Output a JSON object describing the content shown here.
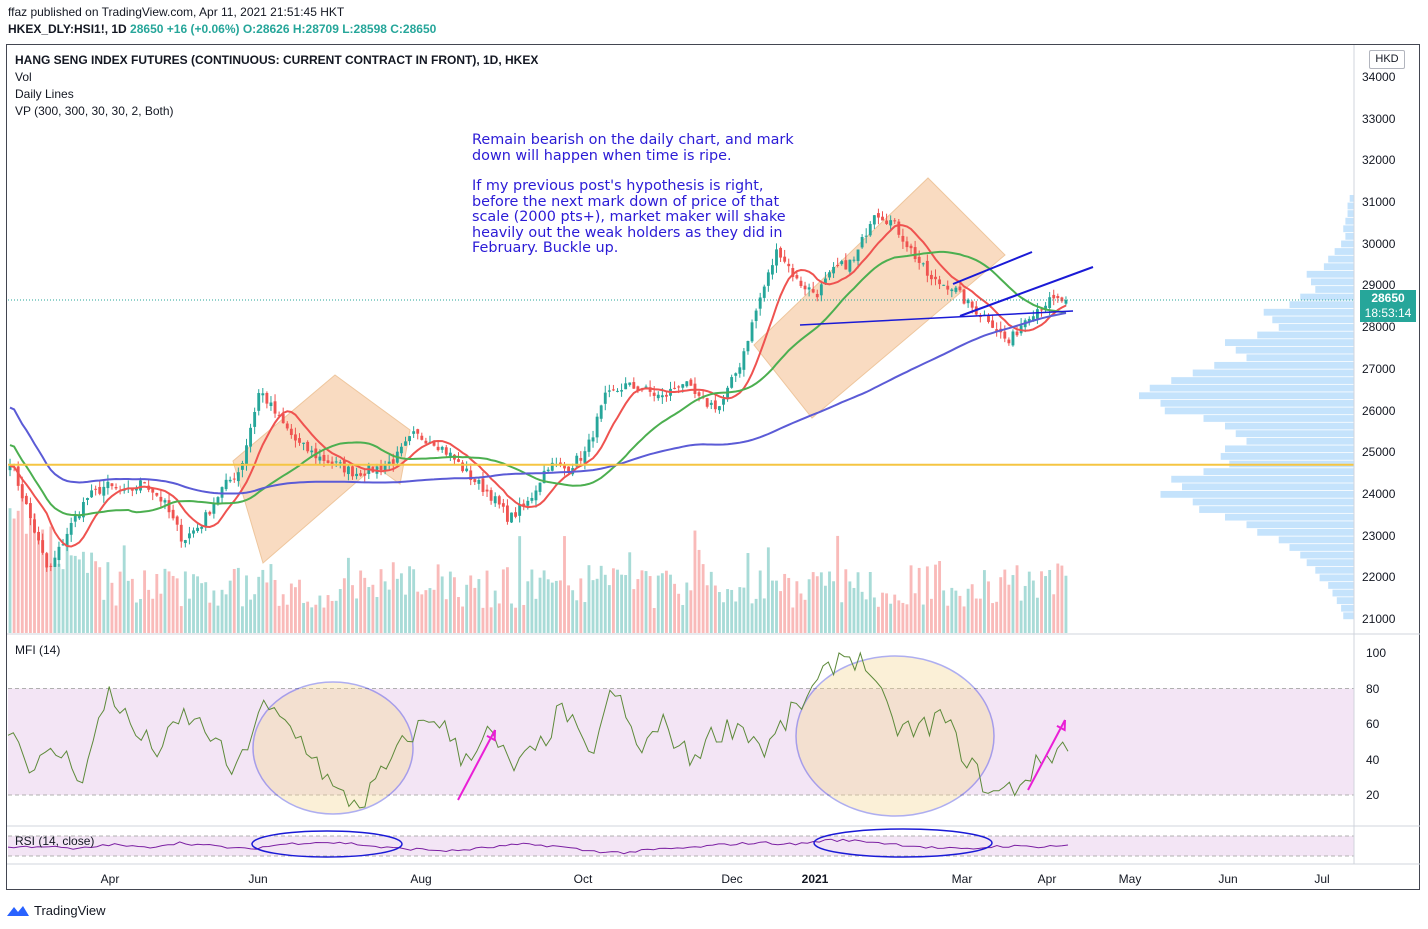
{
  "header": {
    "published": "ffaz published on TradingView.com, Apr 11, 2021 21:51:45 HKT",
    "symbol_line_prefix": "HKEX_DLY:HSI1!, 1D",
    "last": "28650",
    "change": "+16 (+0.06%)",
    "ohlc": "O:28626 H:28709 L:28598 C:28650"
  },
  "legend": {
    "title": "HANG SENG INDEX FUTURES (CONTINUOUS: CURRENT CONTRACT IN FRONT), 1D, HKEX",
    "items": [
      "Vol",
      "Daily Lines",
      "VP (300, 300, 30, 30, 2, Both)"
    ],
    "mfi": "MFI (14)",
    "rsi": "RSI (14, close)"
  },
  "annotation": {
    "para1": "Remain bearish on the daily chart, and mark\ndown will happen when time is ripe.",
    "para2": "If my previous post's hypothesis is right,\nbefore the next mark down of price of that\nscale (2000 pts+), market maker will shake\nheavily out the weak holders as they did in\nFebruary. Buckle up."
  },
  "currency": "HKD",
  "price_tag": {
    "price": "28650",
    "countdown": "18:53:14"
  },
  "footer": {
    "brand": "TradingView"
  },
  "colors": {
    "up": "#26a69a",
    "down": "#ef5350",
    "ma_fast": "#ef5350",
    "ma_mid": "#4caf50",
    "ma_slow": "#5b5bd6",
    "hline": "#f5c542",
    "box": "#f7c9a0",
    "vp": "#bbdefb",
    "mfi_band": "#f3e5f5",
    "mfi_line": "#5d8a3a",
    "rsi_line": "#7b1fa2",
    "ink": "#2b1bd6",
    "arrow": "#ea1fd6"
  },
  "chart_data": [
    {
      "type": "candlestick",
      "title": "HANG SENG INDEX FUTURES (CONTINUOUS: CURRENT CONTRACT IN FRONT), 1D, HKEX",
      "y_ticks": [
        21000,
        22000,
        23000,
        24000,
        25000,
        26000,
        27000,
        28000,
        29000,
        30000,
        31000,
        32000,
        33000,
        34000
      ],
      "ylim": [
        20800,
        34300
      ],
      "x_ticks": [
        {
          "label": "Apr",
          "bold": false
        },
        {
          "label": "Jun",
          "bold": false
        },
        {
          "label": "Aug",
          "bold": false
        },
        {
          "label": "Oct",
          "bold": false
        },
        {
          "label": "Dec",
          "bold": false
        },
        {
          "label": "2021",
          "bold": true
        },
        {
          "label": "Mar",
          "bold": false
        },
        {
          "label": "Apr",
          "bold": false
        },
        {
          "label": "May",
          "bold": false
        },
        {
          "label": "Jun",
          "bold": false
        },
        {
          "label": "Jul",
          "bold": false
        }
      ],
      "close_path": [
        24800,
        23500,
        22100,
        23100,
        23900,
        24200,
        24000,
        24300,
        23800,
        22900,
        23300,
        24100,
        24600,
        26500,
        25800,
        25200,
        24900,
        24700,
        24500,
        24600,
        24800,
        25400,
        25300,
        24900,
        24400,
        24000,
        23400,
        23800,
        24700,
        24600,
        25000,
        26300,
        26600,
        26500,
        26300,
        26700,
        26200,
        26100,
        27100,
        28600,
        29900,
        29100,
        28800,
        29400,
        29600,
        30800,
        30500,
        29800,
        29100,
        29000,
        28500,
        28200,
        27600,
        28300,
        28600,
        28650
      ],
      "last": 28650,
      "horizontal_level": 24700
    },
    {
      "type": "line",
      "title": "MFI (14)",
      "y_ticks": [
        20,
        40,
        60,
        80,
        100
      ],
      "ylim": [
        0,
        105
      ],
      "band": [
        20,
        80
      ],
      "values": [
        60,
        35,
        45,
        30,
        80,
        55,
        45,
        65,
        55,
        30,
        70,
        60,
        45,
        20,
        15,
        35,
        55,
        65,
        40,
        55,
        35,
        45,
        70,
        40,
        80,
        45,
        60,
        40,
        55,
        60,
        45,
        65,
        80,
        100,
        95,
        60,
        55,
        65,
        40,
        20,
        25,
        40,
        50
      ]
    },
    {
      "type": "line",
      "title": "RSI (14, close)",
      "ylim": [
        20,
        80
      ],
      "values": [
        45,
        50,
        40,
        55,
        45,
        60,
        50,
        40,
        55,
        62,
        58,
        45,
        40,
        35,
        45,
        55,
        50,
        35,
        30,
        40,
        45,
        55,
        60,
        55,
        68,
        65,
        55,
        45,
        40,
        50,
        48,
        52
      ]
    }
  ]
}
